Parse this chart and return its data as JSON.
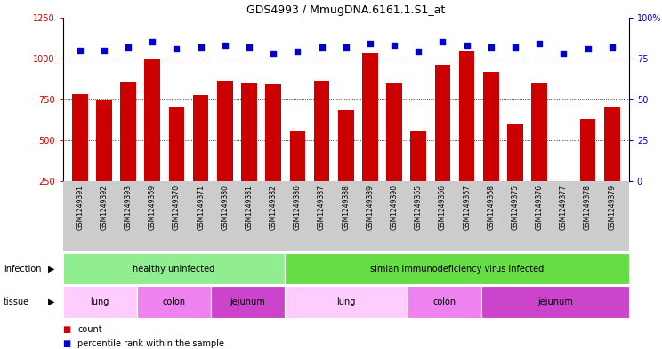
{
  "title": "GDS4993 / MmugDNA.6161.1.S1_at",
  "samples": [
    "GSM1249391",
    "GSM1249392",
    "GSM1249393",
    "GSM1249369",
    "GSM1249370",
    "GSM1249371",
    "GSM1249380",
    "GSM1249381",
    "GSM1249382",
    "GSM1249386",
    "GSM1249387",
    "GSM1249388",
    "GSM1249389",
    "GSM1249390",
    "GSM1249365",
    "GSM1249366",
    "GSM1249367",
    "GSM1249368",
    "GSM1249375",
    "GSM1249376",
    "GSM1249377",
    "GSM1249378",
    "GSM1249379"
  ],
  "counts": [
    780,
    745,
    860,
    1000,
    700,
    775,
    865,
    855,
    840,
    555,
    865,
    685,
    1030,
    845,
    555,
    960,
    1050,
    920,
    600,
    845,
    245,
    630,
    700
  ],
  "percentiles": [
    80,
    80,
    82,
    85,
    81,
    82,
    83,
    82,
    78,
    79,
    82,
    82,
    84,
    83,
    79,
    85,
    83,
    82,
    82,
    84,
    78,
    81,
    82
  ],
  "bar_color": "#CC0000",
  "dot_color": "#0000CC",
  "ylim_left": [
    250,
    1250
  ],
  "ylim_right": [
    0,
    100
  ],
  "yticks_left": [
    250,
    500,
    750,
    1000,
    1250
  ],
  "yticks_right": [
    0,
    25,
    50,
    75,
    100
  ],
  "grid_values": [
    500,
    750,
    1000
  ],
  "infection_groups": [
    {
      "label": "healthy uninfected",
      "start": 0,
      "end": 9,
      "color": "#90EE90"
    },
    {
      "label": "simian immunodeficiency virus infected",
      "start": 9,
      "end": 23,
      "color": "#66DD44"
    }
  ],
  "tissue_groups": [
    {
      "label": "lung",
      "start": 0,
      "end": 3,
      "color": "#FFCCFF"
    },
    {
      "label": "colon",
      "start": 3,
      "end": 6,
      "color": "#EE82EE"
    },
    {
      "label": "jejunum",
      "start": 6,
      "end": 9,
      "color": "#DD44DD"
    },
    {
      "label": "lung",
      "start": 9,
      "end": 14,
      "color": "#FFCCFF"
    },
    {
      "label": "colon",
      "start": 14,
      "end": 17,
      "color": "#EE82EE"
    },
    {
      "label": "jejunum",
      "start": 17,
      "end": 23,
      "color": "#DD44DD"
    }
  ],
  "legend_count_color": "#CC0000",
  "legend_dot_color": "#0000CC",
  "background_color": "#FFFFFF",
  "tick_area_color": "#CCCCCC",
  "n_samples": 23
}
